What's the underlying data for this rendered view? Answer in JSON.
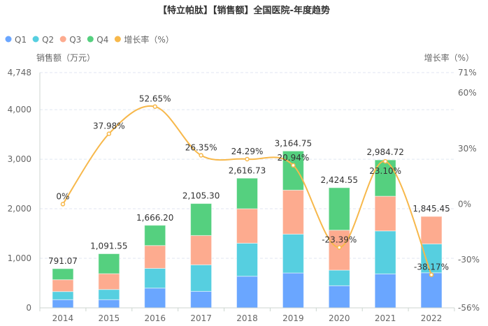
{
  "chart_data": {
    "type": "bar",
    "title": "【特立帕肽】【销售额】全国医院-年度趋势",
    "ylabel": "销售额（万元）",
    "y2label": "增长率（%）",
    "categories": [
      "2014",
      "2015",
      "2016",
      "2017",
      "2018",
      "2019",
      "2020",
      "2021",
      "2022"
    ],
    "stacked": true,
    "ylim": [
      0,
      4748
    ],
    "yticks": [
      "0",
      "1,000",
      "2,000",
      "3,000",
      "4,000",
      "4,748"
    ],
    "y2lim": [
      -56,
      71
    ],
    "y2ticks": [
      "-56%",
      "-30%",
      "0%",
      "30%",
      "60%",
      "71%"
    ],
    "legend_position": "top-left",
    "grid": true,
    "series": [
      {
        "name": "Q1",
        "color": "#6aa6ff",
        "values": [
          165,
          165,
          399,
          333,
          638,
          704,
          446,
          685,
          708
        ]
      },
      {
        "name": "Q2",
        "color": "#56cfe0",
        "values": [
          164,
          206,
          398,
          536,
          667,
          784,
          315,
          868,
          583
        ]
      },
      {
        "name": "Q3",
        "color": "#fdab8f",
        "values": [
          239,
          319,
          461,
          591,
          695,
          888,
          807,
          700,
          554
        ]
      },
      {
        "name": "Q4",
        "color": "#55d07f",
        "values": [
          223,
          402,
          408,
          645,
          617,
          789,
          857,
          732,
          null
        ]
      }
    ],
    "totals": [
      "791.07",
      "1,091.55",
      "1,666.20",
      "2,105.30",
      "2,616.73",
      "3,164.75",
      "2,424.55",
      "2,984.72",
      "1,845.45"
    ],
    "line": {
      "name": "增长率（%）",
      "color": "#f7b84b",
      "axis": "right",
      "type": "line",
      "smooth": true,
      "values": [
        0,
        37.98,
        52.65,
        26.35,
        24.29,
        20.94,
        -23.39,
        23.1,
        -38.17
      ],
      "labels": [
        "0%",
        "37.98%",
        "52.65%",
        "26.35%",
        "24.29%",
        "20.94%",
        "-23.39%",
        "23.10%",
        "-38.17%"
      ]
    }
  }
}
